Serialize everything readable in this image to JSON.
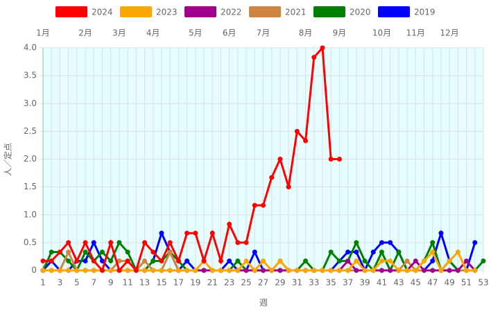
{
  "chart_data": {
    "type": "line",
    "x_label": "週",
    "y_label": "人／定点",
    "categories": [
      1,
      null,
      3,
      null,
      5,
      null,
      7,
      null,
      9,
      null,
      11,
      null,
      13,
      null,
      15,
      null,
      17,
      null,
      19,
      null,
      21,
      null,
      23,
      null,
      25,
      null,
      27,
      null,
      29,
      null,
      31,
      null,
      33,
      null,
      35,
      null,
      37,
      null,
      39,
      null,
      41,
      null,
      43,
      null,
      45,
      null,
      47,
      null,
      49,
      null,
      51,
      null,
      53
    ],
    "month_labels": [
      {
        "week": 1,
        "label": "1月"
      },
      {
        "week": 6,
        "label": "2月"
      },
      {
        "week": 10,
        "label": "3月"
      },
      {
        "week": 14,
        "label": "4月"
      },
      {
        "week": 19,
        "label": "5月"
      },
      {
        "week": 23,
        "label": "6月"
      },
      {
        "week": 27,
        "label": "7月"
      },
      {
        "week": 32,
        "label": "8月"
      },
      {
        "week": 36,
        "label": "9月"
      },
      {
        "week": 41,
        "label": "10月"
      },
      {
        "week": 45,
        "label": "11月"
      },
      {
        "week": 49,
        "label": "12月"
      }
    ],
    "ylim": [
      0,
      4
    ],
    "yticks": [
      0,
      0.5,
      {
        "value": 1,
        "label": "1.0"
      },
      1.5,
      {
        "value": 2,
        "label": "2.0"
      },
      2.5,
      {
        "value": 3,
        "label": "3.0"
      },
      3.5,
      {
        "value": 4,
        "label": "4.0"
      }
    ],
    "grid": true,
    "series": [
      {
        "name": "2024",
        "color": "#ff0000",
        "values": [
          0.17,
          0.17,
          0.33,
          0.5,
          0.17,
          0.5,
          0.17,
          0,
          0.5,
          0,
          0.17,
          0,
          0.5,
          0.33,
          0.17,
          0.5,
          0.17,
          0.67,
          0.67,
          0.17,
          0.67,
          0.17,
          0.83,
          0.5,
          0.5,
          1.17,
          1.17,
          1.67,
          2.0,
          1.5,
          2.5,
          2.33,
          3.83,
          4.0,
          2.0,
          2.0,
          null,
          null,
          null,
          null,
          null,
          null,
          null,
          null,
          null,
          null,
          null,
          null,
          null,
          null,
          null,
          null,
          null
        ]
      },
      {
        "name": "2023",
        "color": "#ffa500",
        "values": [
          0,
          0,
          0,
          0,
          0,
          0,
          0,
          0,
          0,
          0,
          0,
          0,
          0,
          0,
          0,
          0,
          0,
          0,
          0,
          0.17,
          0,
          0,
          0,
          0,
          0.17,
          0,
          0.17,
          0,
          0.17,
          0,
          0,
          0,
          0,
          0,
          0,
          0,
          0,
          0.17,
          0,
          0,
          0.17,
          0.17,
          0,
          0,
          0,
          0.17,
          0.33,
          0,
          0.17,
          0.33,
          0,
          0,
          null
        ]
      },
      {
        "name": "2022",
        "color": "#a0008c",
        "values": [
          0,
          0,
          0,
          0,
          0,
          0,
          0,
          0,
          0,
          0,
          0,
          0,
          0,
          0,
          0,
          0,
          0,
          0,
          0,
          0,
          0,
          0,
          0,
          0,
          0,
          0,
          0,
          0,
          0,
          0,
          0,
          0,
          0,
          0,
          0,
          0,
          0.17,
          0,
          0,
          0,
          0,
          0,
          0,
          0,
          0.17,
          0,
          0,
          0,
          0,
          0,
          0.17,
          0,
          null
        ]
      },
      {
        "name": "2021",
        "color": "#cd853f",
        "values": [
          0,
          0,
          0,
          0.33,
          0,
          0,
          0,
          0,
          0,
          0.17,
          0.17,
          0,
          0.17,
          0,
          0,
          0.33,
          0,
          0,
          0,
          0,
          0,
          0,
          0,
          0,
          0,
          0,
          0,
          0,
          0.17,
          0,
          0,
          0,
          0,
          0,
          0,
          0,
          0,
          0,
          0,
          0,
          0,
          0,
          0,
          0.17,
          0,
          0,
          0,
          0,
          0,
          0,
          0,
          0,
          null
        ]
      },
      {
        "name": "2020",
        "color": "#008000",
        "values": [
          0,
          0.33,
          0.33,
          0.17,
          0,
          0.33,
          0.17,
          0.33,
          0.17,
          0.5,
          0.33,
          0,
          0,
          0.17,
          0.17,
          0.33,
          0.17,
          0,
          0,
          0,
          0,
          0,
          0,
          0.17,
          0,
          0,
          0,
          0,
          0,
          0,
          0,
          0.17,
          0,
          0,
          0.33,
          0.17,
          0.17,
          0.5,
          0.17,
          0,
          0.33,
          0,
          0.33,
          0,
          0,
          0.17,
          0.5,
          0,
          0.17,
          0,
          0,
          0,
          0.17
        ]
      },
      {
        "name": "2019",
        "color": "#0000ff",
        "values": [
          0,
          0.17,
          0,
          0,
          0.17,
          0.17,
          0.5,
          0.17,
          0,
          0,
          0,
          0,
          0,
          0.17,
          0.67,
          0.33,
          0,
          0.17,
          0,
          0,
          0,
          0,
          0.17,
          0,
          0,
          0.33,
          0,
          0,
          0,
          0,
          0,
          0,
          0,
          0,
          0,
          0.17,
          0.33,
          0.33,
          0,
          0.33,
          0.5,
          0.5,
          0.33,
          0,
          0,
          0,
          0.17,
          0.67,
          0.17,
          0,
          0,
          0.5,
          null
        ]
      }
    ]
  }
}
